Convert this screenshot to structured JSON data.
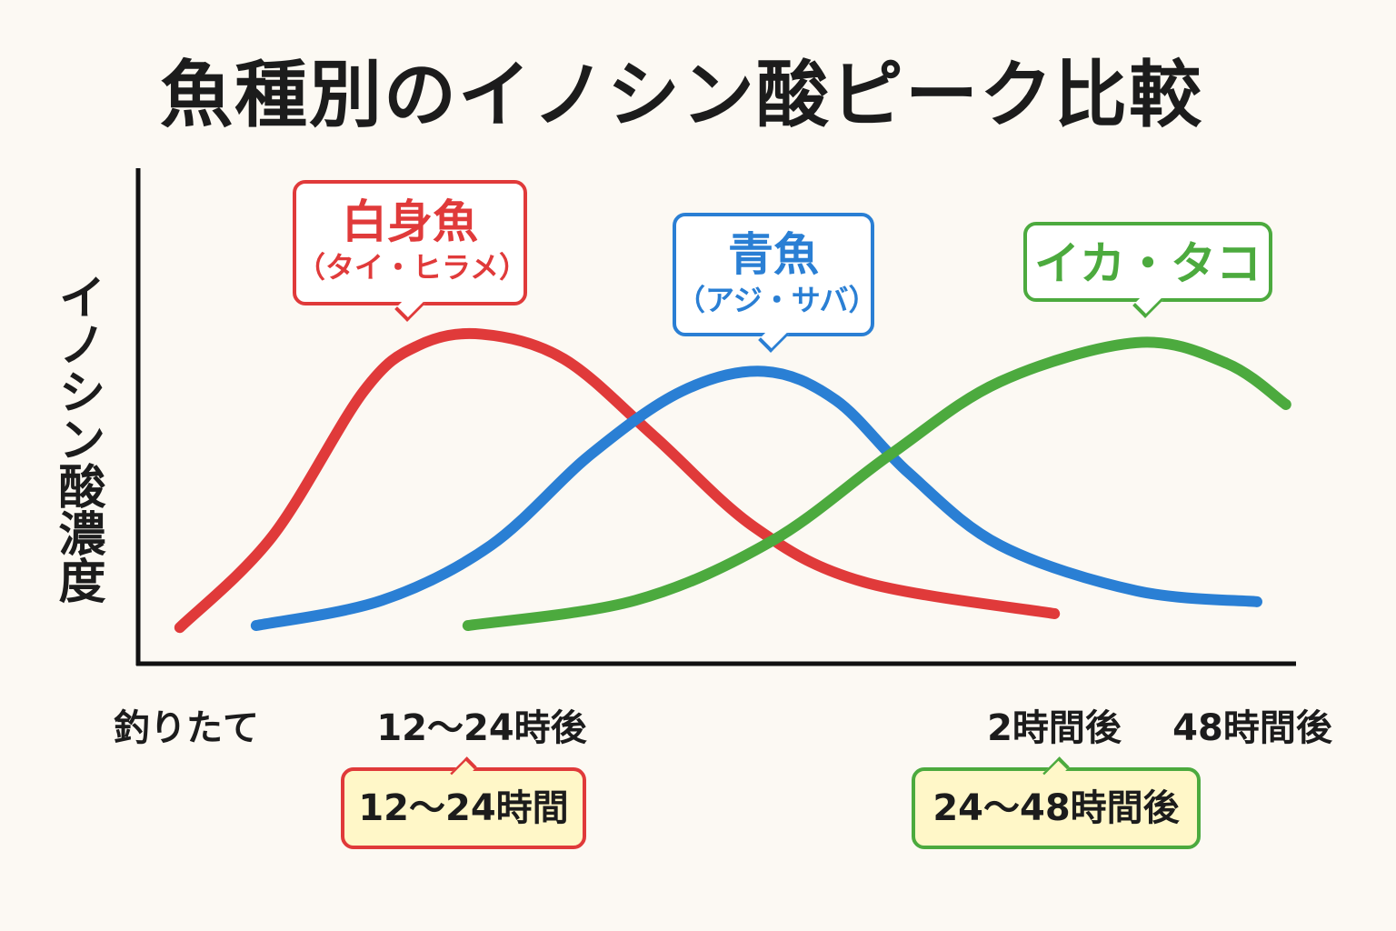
{
  "chart_data": {
    "type": "line",
    "title": "魚種別のイノシン酸ピーク比較",
    "ylabel": "イノシン酸濃度",
    "xlabel": "",
    "x_tick_labels": [
      "釣りたて",
      "12〜24時後",
      "2時間後",
      "48時間後"
    ],
    "xlim": [
      0,
      100
    ],
    "ylim": [
      0,
      100
    ],
    "grid": false,
    "series": [
      {
        "name": "白身魚",
        "sub": "（タイ・ヒラメ）",
        "color": "#e03a3a",
        "points": [
          [
            3.6,
            7.3
          ],
          [
            11.6,
            25.7
          ],
          [
            19.5,
            55
          ],
          [
            24.2,
            64.2
          ],
          [
            29.7,
            66.5
          ],
          [
            36.8,
            61.5
          ],
          [
            44.6,
            45.9
          ],
          [
            53.3,
            27.5
          ],
          [
            62.7,
            16.5
          ],
          [
            79.2,
            10.1
          ]
        ]
      },
      {
        "name": "青魚",
        "sub": "（アジ・サバ）",
        "color": "#2a7fd4",
        "points": [
          [
            10.2,
            7.7
          ],
          [
            21.1,
            12.8
          ],
          [
            30.5,
            23.9
          ],
          [
            39.1,
            42.2
          ],
          [
            47,
            55
          ],
          [
            54.1,
            59
          ],
          [
            60.3,
            53.2
          ],
          [
            66.6,
            38.5
          ],
          [
            74.5,
            23.9
          ],
          [
            86.3,
            14.7
          ],
          [
            96.7,
            12.5
          ]
        ]
      },
      {
        "name": "イカ・タコ",
        "sub": "",
        "color": "#4caa3e",
        "points": [
          [
            28.5,
            7.7
          ],
          [
            43,
            12.8
          ],
          [
            54.8,
            24.8
          ],
          [
            65,
            42.2
          ],
          [
            74.5,
            56.9
          ],
          [
            86.3,
            64.8
          ],
          [
            94.1,
            60.6
          ],
          [
            99.2,
            52.3
          ]
        ]
      }
    ],
    "annotations": [
      {
        "text": "12〜24時間",
        "color": "#e03a3a"
      },
      {
        "text": "24〜48時間後",
        "color": "#4caa3e"
      }
    ]
  }
}
